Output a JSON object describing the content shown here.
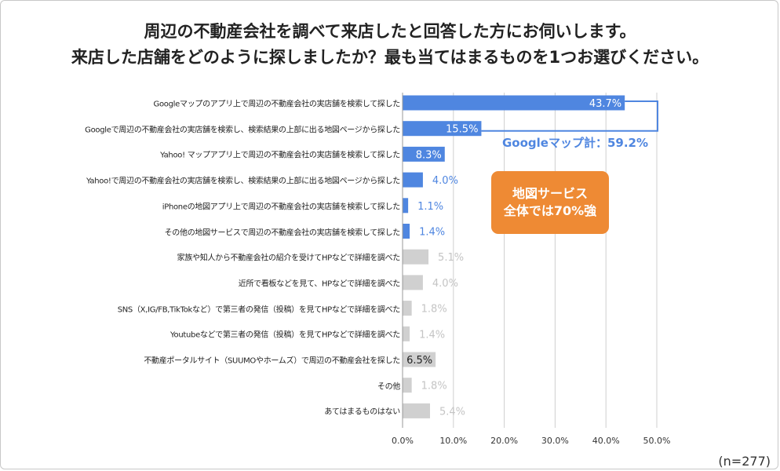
{
  "chart_data": {
    "type": "bar",
    "orientation": "horizontal",
    "title": "周辺の不動産会社を調べて来店したと回答した方にお伺いします。",
    "subtitle": "来店した店舗をどのように探しましたか？最も当てはまるものを1つお選びください。",
    "categories": [
      "Googleマップのアプリ上で周辺の不動産会社の実店舗を検索して探した",
      "Googleで周辺の不動産会社の実店舗を検索し、検索結果の上部に出る地図ページから探した",
      "Yahoo! マップアプリ上で周辺の不動産会社の実店舗を検索して探した",
      "Yahoo!で周辺の不動産会社の実店舗を検索し、検索結果の上部に出る地図ページから探した",
      "iPhoneの地図アプリ上で周辺の不動産会社の実店舗を検索して探した",
      "その他の地図サービスで周辺の不動産会社の実店舗を検索して探した",
      "家族や知人から不動産会社の紹介を受けてHPなどで詳細を調べた",
      "近所で看板などを見て、HPなどで詳細を調べた",
      "SNS（X,IG/FB,TikTokなど）で第三者の発信（投稿）を見てHPなどで詳細を調べた",
      "Youtubeなどで第三者の発信（投稿）を見てHPなどで詳細を調べた",
      "不動産ポータルサイト（SUUMOやホームズ）で周辺の不動産会社を探した",
      "その他",
      "あてはまるものはない"
    ],
    "values": [
      43.7,
      15.5,
      8.3,
      4.0,
      1.1,
      1.4,
      5.1,
      4.0,
      1.8,
      1.4,
      6.5,
      1.8,
      5.4
    ],
    "value_labels": [
      "43.7%",
      "15.5%",
      "8.3%",
      "4.0%",
      "1.1%",
      "1.4%",
      "5.1%",
      "4.0%",
      "1.8%",
      "1.4%",
      "6.5%",
      "1.8%",
      "5.4%"
    ],
    "highlight": [
      "blue",
      "blue",
      "blue",
      "blue",
      "blue",
      "blue",
      "gray",
      "gray",
      "gray",
      "gray",
      "gray",
      "gray",
      "gray"
    ],
    "label_inside": [
      true,
      true,
      true,
      false,
      false,
      false,
      false,
      false,
      false,
      false,
      true,
      false,
      false
    ],
    "xlim": [
      0,
      50
    ],
    "xticks": [
      "0.0%",
      "10.0%",
      "20.0%",
      "30.0%",
      "40.0%",
      "50.0%"
    ],
    "xlabel": "",
    "ylabel": "",
    "grid": "vertical",
    "annotations": {
      "google_total": "Googleマップ計：59.2%",
      "map_service_line1": "地図サービス",
      "map_service_line2": "全体では70%強"
    },
    "note": "(n=277)"
  },
  "colors": {
    "blue": "#4f86e0",
    "gray": "#d0d0d0",
    "orange": "#ee8a34",
    "grid": "#cfcfcf",
    "label_gray": "#c4c4c4"
  }
}
